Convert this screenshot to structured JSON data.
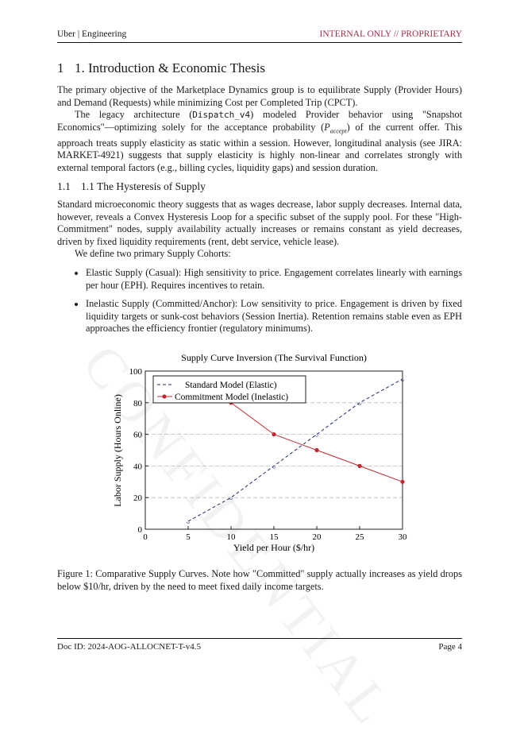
{
  "header": {
    "left": "Uber | Engineering",
    "right": "INTERNAL ONLY // PROPRIETARY"
  },
  "watermark": "CONFIDENTIAL",
  "section1": {
    "number": "1",
    "title": "1. Introduction & Economic Thesis",
    "p1": "The primary objective of the Marketplace Dynamics group is to equilibrate Supply (Provider Hours) and Demand (Requests) while minimizing Cost per Completed Trip (CPCT).",
    "p2_a": "The legacy architecture (",
    "p2_code": "Dispatch_v4",
    "p2_b": ") modeled Provider behavior using \"Snapshot Economics\"—optimizing solely for the acceptance probability (",
    "p2_var": "P",
    "p2_sub": "accept",
    "p2_c": ") of the current offer. This approach treats supply elasticity as static within a session. However, longitudinal analysis (see JIRA: MARKET-4921) suggests that supply elasticity is highly non-linear and correlates strongly with external temporal factors (e.g., billing cycles, liquidity gaps) and session duration."
  },
  "section11": {
    "number": "1.1",
    "title": "1.1 The Hysteresis of Supply",
    "p1": "Standard microeconomic theory suggests that as wages decrease, labor supply decreases. Internal data, however, reveals a Convex Hysteresis Loop for a specific subset of the supply pool. For these \"High-Commitment\" nodes, supply availability actually increases or remains constant as yield decreases, driven by fixed liquidity requirements (rent, debt service, vehicle lease).",
    "p2": "We define two primary Supply Cohorts:",
    "bullets": [
      "Elastic Supply (Casual): High sensitivity to price. Engagement correlates linearly with earnings per hour (EPH). Requires incentives to retain.",
      "Inelastic Supply (Committed/Anchor): Low sensitivity to price. Engagement is driven by fixed liquidity targets or sunk-cost behaviors (Session Inertia). Retention remains stable even as EPH approaches the efficiency frontier (regulatory minimums)."
    ]
  },
  "chart_data": {
    "type": "line",
    "title": "Supply Curve Inversion (The Survival Function)",
    "xlabel": "Yield per Hour ($/hr)",
    "ylabel": "Labor Supply (Hours Online)",
    "xlim": [
      0,
      30
    ],
    "ylim": [
      0,
      100
    ],
    "xticks": [
      "0",
      "5",
      "10",
      "15",
      "20",
      "25",
      "30"
    ],
    "yticks": [
      "0",
      "20",
      "40",
      "60",
      "80",
      "100"
    ],
    "grid": "horizontal dashed",
    "legend": "top-left",
    "series": [
      {
        "name": "Standard Model (Elastic)",
        "color": "#1f2a6e",
        "style": "dashed",
        "x": [
          5,
          10,
          15,
          20,
          25,
          30
        ],
        "y": [
          5,
          20,
          40,
          60,
          80,
          95
        ]
      },
      {
        "name": "Commitment Model (Inelastic)",
        "color": "#c0282d",
        "style": "solid",
        "x": [
          10,
          15,
          20,
          25,
          30
        ],
        "y": [
          80,
          60,
          50,
          40,
          30
        ]
      }
    ]
  },
  "caption": "Figure 1: Comparative Supply Curves. Note how \"Committed\" supply actually increases as yield drops below $10/hr, driven by the need to meet fixed daily income targets.",
  "footer": {
    "left": "Doc ID: 2024-AOG-ALLOCNET-T-v4.5",
    "right": "Page 4"
  }
}
